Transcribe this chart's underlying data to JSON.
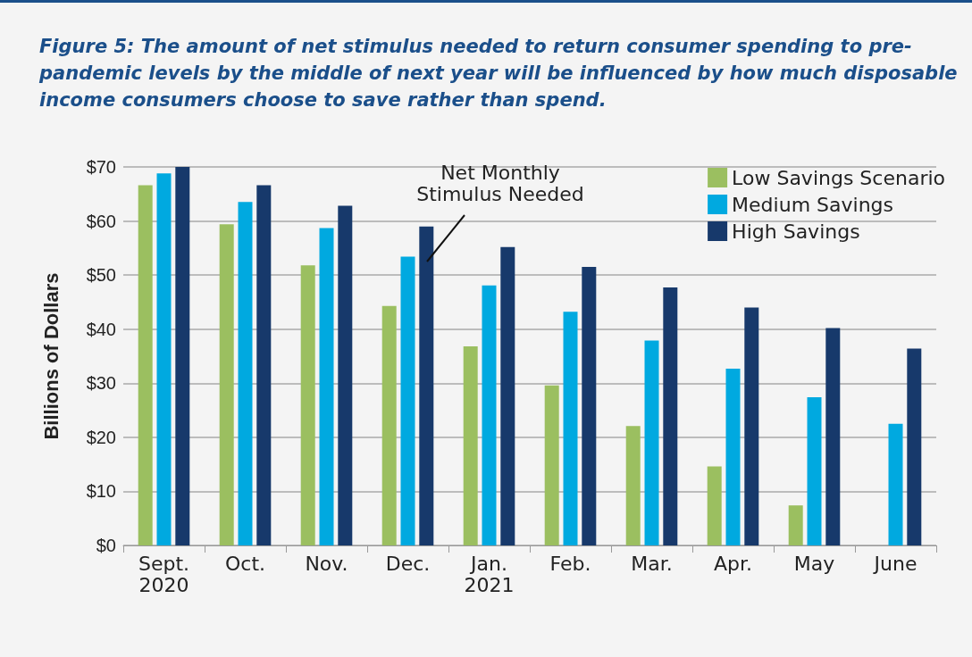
{
  "chart_data": {
    "type": "bar",
    "title": "Figure 5: The amount of net stimulus needed to return consumer spending to pre-pandemic levels by the middle of next year will be influenced by how much disposable income consumers choose to save rather than spend.",
    "ylabel": "Billions of Dollars",
    "categories": [
      "Sept.\n2020",
      "Oct.",
      "Nov.",
      "Dec.",
      "Jan.\n2021",
      "Feb.",
      "Mar.",
      "Apr.",
      "May",
      "June"
    ],
    "series": [
      {
        "name": "Low Savings Scenario",
        "color": "#9bbf60",
        "values": [
          66.6,
          59.4,
          51.8,
          44.3,
          36.8,
          29.6,
          22.1,
          14.6,
          7.4,
          null
        ]
      },
      {
        "name": "Medium Savings",
        "color": "#00a9e0",
        "values": [
          68.8,
          63.5,
          58.7,
          53.4,
          48.1,
          43.2,
          37.9,
          32.7,
          27.4,
          22.5
        ]
      },
      {
        "name": "High Savings",
        "color": "#17396b",
        "values": [
          70,
          66.6,
          62.8,
          59.0,
          55.2,
          51.5,
          47.7,
          44.0,
          40.2,
          36.4
        ]
      }
    ],
    "ylim": [
      0,
      70
    ],
    "yticks": [
      {
        "value": 0,
        "label": "$0"
      },
      {
        "value": 10,
        "label": "$10"
      },
      {
        "value": 20,
        "label": "$20"
      },
      {
        "value": 30,
        "label": "$30"
      },
      {
        "value": 40,
        "label": "$40"
      },
      {
        "value": 50,
        "label": "$50"
      },
      {
        "value": 60,
        "label": "$60"
      },
      {
        "value": 70,
        "label": "$70"
      }
    ],
    "annotations": [
      "Net Monthly\nStimulus Needed"
    ],
    "grid": "y",
    "legend": "top right"
  }
}
